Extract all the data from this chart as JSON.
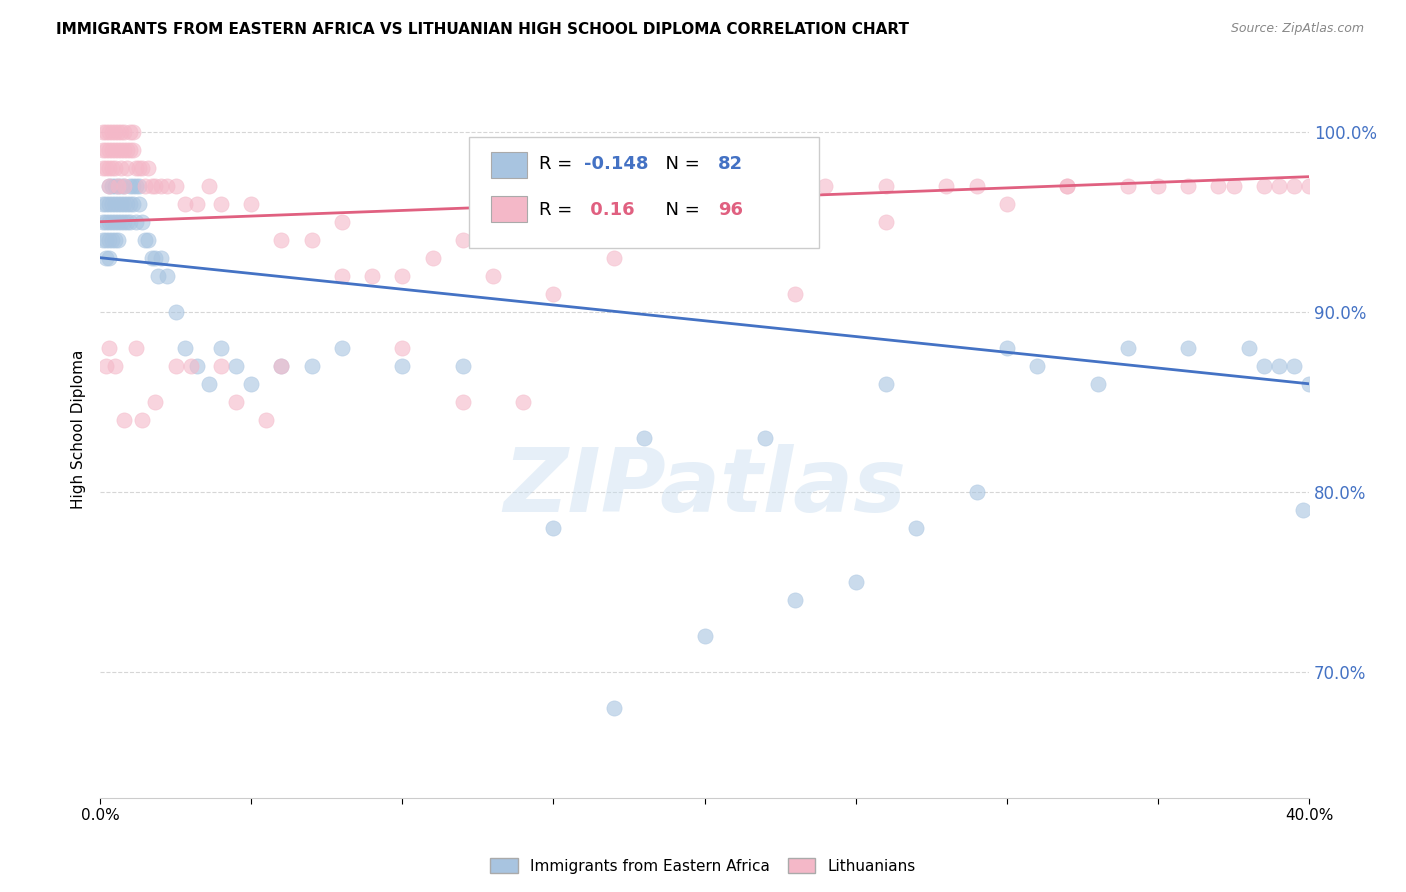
{
  "title": "IMMIGRANTS FROM EASTERN AFRICA VS LITHUANIAN HIGH SCHOOL DIPLOMA CORRELATION CHART",
  "source": "Source: ZipAtlas.com",
  "ylabel": "High School Diploma",
  "ytick_values": [
    1.0,
    0.9,
    0.8,
    0.7
  ],
  "xlim": [
    0.0,
    0.4
  ],
  "ylim": [
    0.63,
    1.04
  ],
  "blue_R": -0.148,
  "blue_N": 82,
  "pink_R": 0.16,
  "pink_N": 96,
  "blue_color": "#a8c4e0",
  "pink_color": "#f4b8c8",
  "blue_line_color": "#4472C4",
  "pink_line_color": "#E06080",
  "watermark": "ZIPatlas",
  "legend_label_blue": "Immigrants from Eastern Africa",
  "legend_label_pink": "Lithuanians",
  "blue_trend_x0": 0.0,
  "blue_trend_y0": 0.93,
  "blue_trend_x1": 0.4,
  "blue_trend_y1": 0.86,
  "pink_trend_x0": 0.0,
  "pink_trend_y0": 0.95,
  "pink_trend_x1": 0.4,
  "pink_trend_y1": 0.975,
  "blue_x": [
    0.001,
    0.001,
    0.001,
    0.002,
    0.002,
    0.002,
    0.002,
    0.003,
    0.003,
    0.003,
    0.003,
    0.003,
    0.004,
    0.004,
    0.004,
    0.004,
    0.005,
    0.005,
    0.005,
    0.005,
    0.006,
    0.006,
    0.006,
    0.006,
    0.007,
    0.007,
    0.007,
    0.008,
    0.008,
    0.008,
    0.009,
    0.009,
    0.01,
    0.01,
    0.01,
    0.011,
    0.011,
    0.012,
    0.012,
    0.013,
    0.013,
    0.014,
    0.015,
    0.016,
    0.017,
    0.018,
    0.019,
    0.02,
    0.022,
    0.025,
    0.028,
    0.032,
    0.036,
    0.04,
    0.045,
    0.05,
    0.06,
    0.07,
    0.08,
    0.1,
    0.12,
    0.15,
    0.18,
    0.22,
    0.26,
    0.3,
    0.34,
    0.38,
    0.39,
    0.395,
    0.398,
    0.4,
    0.385,
    0.36,
    0.33,
    0.31,
    0.29,
    0.27,
    0.25,
    0.23,
    0.2,
    0.17
  ],
  "blue_y": [
    0.96,
    0.95,
    0.94,
    0.96,
    0.95,
    0.94,
    0.93,
    0.97,
    0.96,
    0.95,
    0.94,
    0.93,
    0.97,
    0.96,
    0.95,
    0.94,
    0.97,
    0.96,
    0.95,
    0.94,
    0.97,
    0.96,
    0.95,
    0.94,
    0.97,
    0.96,
    0.95,
    0.97,
    0.96,
    0.95,
    0.96,
    0.95,
    0.97,
    0.96,
    0.95,
    0.97,
    0.96,
    0.97,
    0.95,
    0.97,
    0.96,
    0.95,
    0.94,
    0.94,
    0.93,
    0.93,
    0.92,
    0.93,
    0.92,
    0.9,
    0.88,
    0.87,
    0.86,
    0.88,
    0.87,
    0.86,
    0.87,
    0.87,
    0.88,
    0.87,
    0.87,
    0.78,
    0.83,
    0.83,
    0.86,
    0.88,
    0.88,
    0.88,
    0.87,
    0.87,
    0.79,
    0.86,
    0.87,
    0.88,
    0.86,
    0.87,
    0.8,
    0.78,
    0.75,
    0.74,
    0.72,
    0.68
  ],
  "pink_x": [
    0.001,
    0.001,
    0.001,
    0.002,
    0.002,
    0.002,
    0.003,
    0.003,
    0.003,
    0.003,
    0.004,
    0.004,
    0.004,
    0.005,
    0.005,
    0.005,
    0.006,
    0.006,
    0.006,
    0.007,
    0.007,
    0.007,
    0.008,
    0.008,
    0.008,
    0.009,
    0.009,
    0.01,
    0.01,
    0.011,
    0.011,
    0.012,
    0.013,
    0.014,
    0.015,
    0.016,
    0.017,
    0.018,
    0.02,
    0.022,
    0.025,
    0.028,
    0.032,
    0.036,
    0.04,
    0.05,
    0.06,
    0.07,
    0.08,
    0.09,
    0.1,
    0.11,
    0.12,
    0.13,
    0.15,
    0.17,
    0.2,
    0.23,
    0.26,
    0.29,
    0.32,
    0.35,
    0.37,
    0.385,
    0.395,
    0.4,
    0.39,
    0.375,
    0.36,
    0.34,
    0.32,
    0.3,
    0.28,
    0.26,
    0.24,
    0.22,
    0.2,
    0.18,
    0.16,
    0.14,
    0.12,
    0.1,
    0.08,
    0.06,
    0.04,
    0.025,
    0.018,
    0.012,
    0.008,
    0.005,
    0.003,
    0.002,
    0.014,
    0.03,
    0.045,
    0.055
  ],
  "pink_y": [
    1.0,
    0.99,
    0.98,
    1.0,
    0.99,
    0.98,
    1.0,
    0.99,
    0.98,
    0.97,
    1.0,
    0.99,
    0.98,
    1.0,
    0.99,
    0.98,
    1.0,
    0.99,
    0.97,
    1.0,
    0.99,
    0.98,
    1.0,
    0.99,
    0.97,
    0.99,
    0.98,
    1.0,
    0.99,
    1.0,
    0.99,
    0.98,
    0.98,
    0.98,
    0.97,
    0.98,
    0.97,
    0.97,
    0.97,
    0.97,
    0.97,
    0.96,
    0.96,
    0.97,
    0.96,
    0.96,
    0.94,
    0.94,
    0.95,
    0.92,
    0.92,
    0.93,
    0.94,
    0.92,
    0.91,
    0.93,
    0.95,
    0.91,
    0.95,
    0.97,
    0.97,
    0.97,
    0.97,
    0.97,
    0.97,
    0.97,
    0.97,
    0.97,
    0.97,
    0.97,
    0.97,
    0.96,
    0.97,
    0.97,
    0.97,
    0.96,
    0.96,
    0.96,
    0.97,
    0.85,
    0.85,
    0.88,
    0.92,
    0.87,
    0.87,
    0.87,
    0.85,
    0.88,
    0.84,
    0.87,
    0.88,
    0.87,
    0.84,
    0.87,
    0.85,
    0.84
  ]
}
